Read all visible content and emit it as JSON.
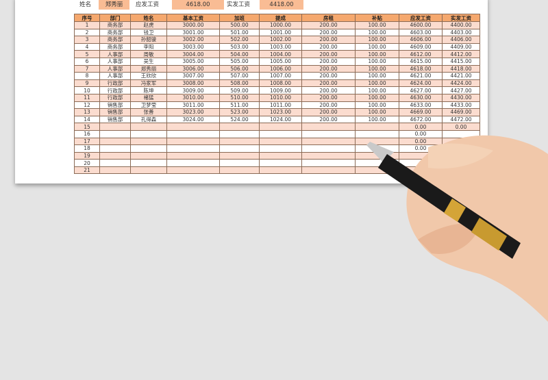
{
  "summary": {
    "name_label": "姓名",
    "name_value": "郑秀丽",
    "gross_label": "应发工资",
    "gross_value": "4618.00",
    "net_label": "实发工资",
    "net_value": "4418.00"
  },
  "table": {
    "headers": [
      "序号",
      "部门",
      "姓名",
      "基本工资",
      "加班",
      "提成",
      "房租",
      "补贴",
      "应发工资",
      "实发工资"
    ],
    "rows": [
      [
        "1",
        "商务部",
        "赵虎",
        "3000.00",
        "500.00",
        "1000.00",
        "200.00",
        "100.00",
        "4600.00",
        "4400.00"
      ],
      [
        "2",
        "商务部",
        "钱卫",
        "3001.00",
        "501.00",
        "1001.00",
        "200.00",
        "100.00",
        "4603.00",
        "4403.00"
      ],
      [
        "3",
        "商务部",
        "孙韶骏",
        "3002.00",
        "502.00",
        "1002.00",
        "200.00",
        "100.00",
        "4606.00",
        "4406.00"
      ],
      [
        "4",
        "商务部",
        "李阳",
        "3003.00",
        "503.00",
        "1003.00",
        "200.00",
        "100.00",
        "4609.00",
        "4409.00"
      ],
      [
        "5",
        "人事部",
        "周敏",
        "3004.00",
        "504.00",
        "1004.00",
        "200.00",
        "100.00",
        "4612.00",
        "4412.00"
      ],
      [
        "6",
        "人事部",
        "吴生",
        "3005.00",
        "505.00",
        "1005.00",
        "200.00",
        "100.00",
        "4615.00",
        "4415.00"
      ],
      [
        "7",
        "人事部",
        "郑秀丽",
        "3006.00",
        "506.00",
        "1006.00",
        "200.00",
        "100.00",
        "4618.00",
        "4418.00"
      ],
      [
        "8",
        "人事部",
        "王欣欣",
        "3007.00",
        "507.00",
        "1007.00",
        "200.00",
        "100.00",
        "4621.00",
        "4421.00"
      ],
      [
        "9",
        "行政部",
        "冯家军",
        "3008.00",
        "508.00",
        "1008.00",
        "200.00",
        "100.00",
        "4624.00",
        "4424.00"
      ],
      [
        "10",
        "行政部",
        "陈坤",
        "3009.00",
        "509.00",
        "1009.00",
        "200.00",
        "100.00",
        "4627.00",
        "4427.00"
      ],
      [
        "11",
        "行政部",
        "褚猛",
        "3010.00",
        "510.00",
        "1010.00",
        "200.00",
        "100.00",
        "4630.00",
        "4430.00"
      ],
      [
        "12",
        "销售部",
        "卫梦莹",
        "3011.00",
        "511.00",
        "1011.00",
        "200.00",
        "100.00",
        "4633.00",
        "4433.00"
      ],
      [
        "13",
        "销售部",
        "张善",
        "3023.00",
        "523.00",
        "1023.00",
        "200.00",
        "100.00",
        "4669.00",
        "4469.00"
      ],
      [
        "14",
        "销售部",
        "孔得森",
        "3024.00",
        "524.00",
        "1024.00",
        "200.00",
        "100.00",
        "4672.00",
        "4472.00"
      ],
      [
        "15",
        "",
        "",
        "",
        "",
        "",
        "",
        "",
        "0.00",
        "0.00"
      ],
      [
        "16",
        "",
        "",
        "",
        "",
        "",
        "",
        "",
        "0.00",
        ""
      ],
      [
        "17",
        "",
        "",
        "",
        "",
        "",
        "",
        "",
        "0.00",
        ""
      ],
      [
        "18",
        "",
        "",
        "",
        "",
        "",
        "",
        "",
        "0.00",
        ""
      ],
      [
        "19",
        "",
        "",
        "",
        "",
        "",
        "",
        "",
        "",
        ""
      ],
      [
        "20",
        "",
        "",
        "",
        "",
        "",
        "",
        "",
        "",
        ""
      ],
      [
        "21",
        "",
        "",
        "",
        "",
        "",
        "",
        "",
        "",
        ""
      ]
    ]
  },
  "colors": {
    "header": "#f5a86e",
    "stripe": "#fbdccf",
    "summary_box": "#f9bc94"
  }
}
